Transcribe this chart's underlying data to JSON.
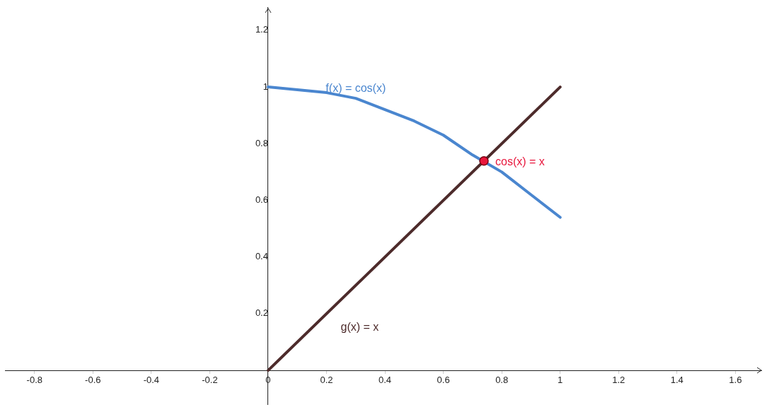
{
  "chart_data": {
    "type": "line",
    "xlim": [
      -0.9,
      1.69
    ],
    "ylim": [
      -0.12,
      1.28
    ],
    "xticks": [
      -0.8,
      -0.6,
      -0.4,
      -0.2,
      0,
      0.2,
      0.4,
      0.6,
      0.8,
      1,
      1.2,
      1.4,
      1.6
    ],
    "yticks": [
      0.2,
      0.4,
      0.6,
      0.8,
      1,
      1.2
    ],
    "series": [
      {
        "name": "f(x) = cos(x)",
        "color": "#4a86cf",
        "x": [
          0,
          0.1,
          0.2,
          0.3,
          0.4,
          0.5,
          0.6,
          0.7,
          0.8,
          0.9,
          1
        ],
        "values": [
          1,
          0.99,
          0.98,
          0.96,
          0.92,
          0.88,
          0.83,
          0.76,
          0.7,
          0.62,
          0.54
        ]
      },
      {
        "name": "g(x) = x",
        "color": "#4d2b2b",
        "x": [
          0,
          1
        ],
        "values": [
          0,
          1
        ]
      },
      {
        "name": "cos(x) = x",
        "type": "scatter",
        "color": "#e8163c",
        "x": [
          0.739
        ],
        "values": [
          0.739
        ],
        "marker": "circle"
      }
    ],
    "legend": false,
    "grid": false
  }
}
